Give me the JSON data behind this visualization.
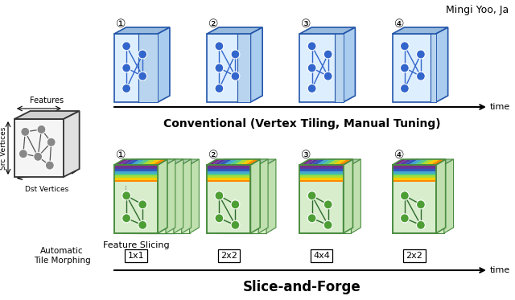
{
  "title_top_right": "Mingi Yoo, Ja",
  "conv_label": "Conventional (Vertex Tiling, Manual Tuning)",
  "snf_label": "Slice-and-Forge",
  "time_label": "time",
  "step_numbers": [
    "①",
    "②",
    "③",
    "④"
  ],
  "tile_labels": [
    "1x1",
    "2x2",
    "4x4",
    "2x2"
  ],
  "feature_slicing_label": "Feature Slicing",
  "auto_tile_label": "Automatic\nTile Morphing",
  "features_label": "Features",
  "src_vertices_label": "Src Vertices",
  "dst_vertices_label": "Dst Vertices",
  "blue_dark": "#2255aa",
  "blue_mid": "#3366cc",
  "blue_light": "#c8dcf0",
  "blue_face_main": "#ddeeff",
  "blue_highlight": "#b8d4ee",
  "blue_top": "#99bbdd",
  "blue_side": "#aaccee",
  "green_dark": "#2d6a2d",
  "green_mid": "#4a8c40",
  "green_light": "#d8edcc",
  "green_top": "#aaccaa",
  "green_side": "#c0e0b0",
  "gray_edge": "#333333",
  "gray_face": "#f5f5f5",
  "gray_top": "#d0d0d0",
  "gray_side": "#e0e0e0",
  "gray_node": "#888888",
  "bg_color": "#ffffff",
  "slice_colors": [
    "#7b2d8b",
    "#5b3a9e",
    "#3355bb",
    "#44aacc",
    "#55cc88",
    "#aadd33",
    "#ffcc00",
    "#ff8800"
  ]
}
